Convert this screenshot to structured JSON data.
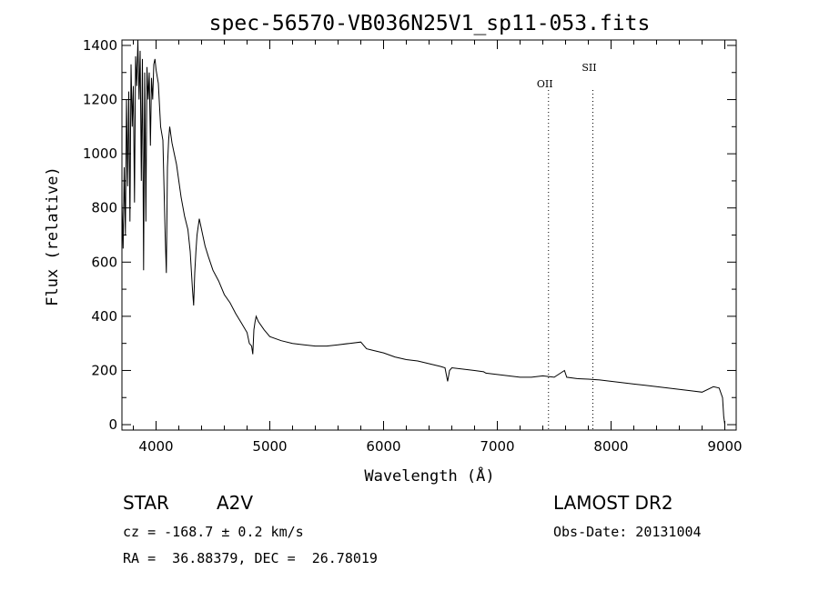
{
  "chart_data": {
    "type": "line",
    "title": "spec-56570-VB036N25V1_sp11-053.fits",
    "xlabel": "Wavelength (Å)",
    "ylabel": "Flux (relative)",
    "xlim": [
      3700,
      9100
    ],
    "ylim": [
      -20,
      1420
    ],
    "x_ticks": [
      4000,
      5000,
      6000,
      7000,
      8000,
      9000
    ],
    "y_ticks": [
      0,
      200,
      400,
      600,
      800,
      1000,
      1200,
      1400
    ],
    "grid": false,
    "series": [
      {
        "x": [
          3700,
          3710,
          3720,
          3730,
          3740,
          3750,
          3760,
          3770,
          3780,
          3790,
          3800,
          3810,
          3820,
          3830,
          3840,
          3850,
          3860,
          3870,
          3880,
          3890,
          3900,
          3910,
          3920,
          3930,
          3940,
          3950,
          3960,
          3970,
          3980,
          3990,
          4000,
          4020,
          4040,
          4060,
          4080,
          4090,
          4100,
          4110,
          4120,
          4140,
          4160,
          4180,
          4200,
          4220,
          4250,
          4280,
          4300,
          4320,
          4330,
          4340,
          4350,
          4360,
          4380,
          4400,
          4430,
          4460,
          4500,
          4550,
          4600,
          4650,
          4700,
          4750,
          4800,
          4820,
          4840,
          4850,
          4860,
          4870,
          4880,
          4900,
          4950,
          5000,
          5100,
          5200,
          5300,
          5400,
          5500,
          5600,
          5700,
          5800,
          5850,
          5900,
          6000,
          6100,
          6200,
          6300,
          6400,
          6500,
          6540,
          6563,
          6580,
          6600,
          6700,
          6800,
          6880,
          6900,
          7000,
          7100,
          7200,
          7300,
          7400,
          7500,
          7590,
          7610,
          7700,
          7800,
          7900,
          8000,
          8100,
          8200,
          8300,
          8400,
          8500,
          8600,
          8700,
          8800,
          8900,
          8950,
          8980,
          8990,
          9000
        ],
        "y": [
          820,
          650,
          950,
          700,
          1200,
          880,
          1230,
          750,
          1330,
          1100,
          1250,
          820,
          1360,
          1250,
          1420,
          1200,
          1380,
          900,
          1350,
          570,
          1300,
          750,
          1320,
          1200,
          1300,
          1030,
          1280,
          1200,
          1330,
          1350,
          1310,
          1260,
          1100,
          1050,
          700,
          560,
          950,
          1050,
          1100,
          1040,
          1000,
          960,
          900,
          840,
          770,
          720,
          640,
          500,
          440,
          560,
          640,
          700,
          760,
          720,
          660,
          620,
          570,
          530,
          480,
          450,
          410,
          375,
          340,
          300,
          290,
          260,
          350,
          380,
          400,
          380,
          350,
          325,
          310,
          300,
          295,
          290,
          290,
          295,
          300,
          305,
          280,
          275,
          265,
          250,
          240,
          235,
          225,
          215,
          210,
          160,
          200,
          210,
          205,
          200,
          195,
          190,
          185,
          180,
          175,
          175,
          180,
          175,
          200,
          175,
          170,
          168,
          165,
          160,
          155,
          150,
          145,
          140,
          135,
          130,
          125,
          120,
          140,
          135,
          100,
          30,
          0
        ]
      }
    ],
    "annotations": [
      {
        "label": "OII",
        "x": 7450
      },
      {
        "label": "SII",
        "x": 7840
      }
    ],
    "info": {
      "object_type": "STAR",
      "subclass": "A2V",
      "cz": "cz = -168.7 ± 0.2 km/s",
      "radec": "RA =  36.88379, DEC =  26.78019",
      "survey": "LAMOST DR2",
      "obs_date": "Obs-Date: 20131004"
    }
  }
}
